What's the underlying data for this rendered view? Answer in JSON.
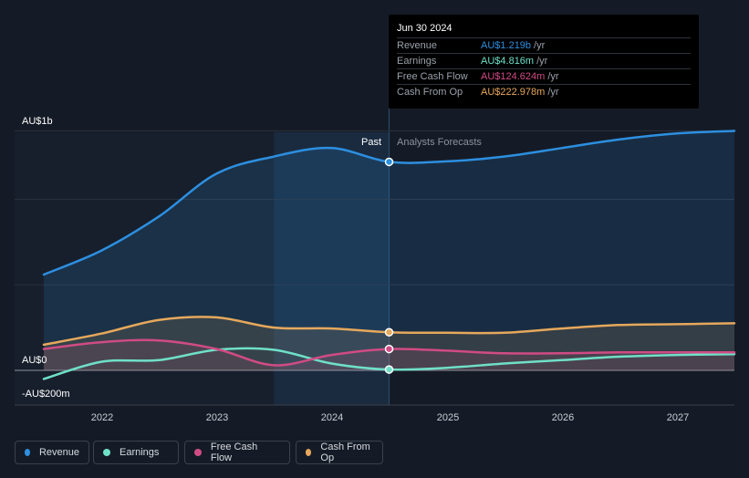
{
  "tooltip": {
    "date": "Jun 30 2024",
    "rows": [
      {
        "label": "Revenue",
        "value": "AU$1.219b",
        "unit": "/yr",
        "color": "#2d8fe0"
      },
      {
        "label": "Earnings",
        "value": "AU$4.816m",
        "unit": "/yr",
        "color": "#6fe0c8"
      },
      {
        "label": "Free Cash Flow",
        "value": "AU$124.624m",
        "unit": "/yr",
        "color": "#d04b84"
      },
      {
        "label": "Cash From Op",
        "value": "AU$222.978m",
        "unit": "/yr",
        "color": "#e6a85c"
      }
    ]
  },
  "axis": {
    "y_top_label": "AU$1b",
    "y_zero_label": "AU$0",
    "y_bottom_label": "-AU$200m",
    "x_ticks": [
      "2022",
      "2023",
      "2024",
      "2025",
      "2026",
      "2027"
    ]
  },
  "regions": {
    "past_label": "Past",
    "forecast_label": "Analysts Forecasts"
  },
  "legend": [
    {
      "label": "Revenue",
      "color": "#2d8fe0"
    },
    {
      "label": "Earnings",
      "color": "#6fe0c8"
    },
    {
      "label": "Free Cash Flow",
      "color": "#d04b84"
    },
    {
      "label": "Cash From Op",
      "color": "#e6a85c"
    }
  ],
  "chart_data": {
    "type": "line",
    "ylim": [
      -200,
      1400
    ],
    "xlim": [
      2021.5,
      2027.5
    ],
    "past_end": 2024.5,
    "highlight_start": 2023.5,
    "series": [
      {
        "name": "Revenue",
        "color": "#2d8fe0",
        "fill": true,
        "points": [
          [
            2021.5,
            560
          ],
          [
            2022.0,
            700
          ],
          [
            2022.5,
            900
          ],
          [
            2023.0,
            1150
          ],
          [
            2023.5,
            1250
          ],
          [
            2024.0,
            1300
          ],
          [
            2024.5,
            1219
          ],
          [
            2025.0,
            1222
          ],
          [
            2025.5,
            1250
          ],
          [
            2026.0,
            1300
          ],
          [
            2026.5,
            1350
          ],
          [
            2027.0,
            1385
          ],
          [
            2027.5,
            1400
          ]
        ]
      },
      {
        "name": "Earnings",
        "color": "#6fe0c8",
        "fill": false,
        "points": [
          [
            2021.5,
            -50
          ],
          [
            2022.0,
            50
          ],
          [
            2022.5,
            60
          ],
          [
            2023.0,
            120
          ],
          [
            2023.5,
            120
          ],
          [
            2024.0,
            40
          ],
          [
            2024.5,
            5
          ],
          [
            2025.0,
            15
          ],
          [
            2025.5,
            40
          ],
          [
            2026.0,
            60
          ],
          [
            2026.5,
            80
          ],
          [
            2027.0,
            90
          ],
          [
            2027.5,
            95
          ]
        ]
      },
      {
        "name": "Free Cash Flow",
        "color": "#d04b84",
        "fill": true,
        "points": [
          [
            2021.5,
            125
          ],
          [
            2022.0,
            165
          ],
          [
            2022.5,
            175
          ],
          [
            2023.0,
            125
          ],
          [
            2023.5,
            30
          ],
          [
            2024.0,
            90
          ],
          [
            2024.5,
            125
          ],
          [
            2025.0,
            115
          ],
          [
            2025.5,
            100
          ],
          [
            2026.0,
            100
          ],
          [
            2026.5,
            105
          ],
          [
            2027.0,
            105
          ],
          [
            2027.5,
            105
          ]
        ]
      },
      {
        "name": "Cash From Op",
        "color": "#e6a85c",
        "fill": true,
        "points": [
          [
            2021.5,
            150
          ],
          [
            2022.0,
            215
          ],
          [
            2022.5,
            295
          ],
          [
            2023.0,
            310
          ],
          [
            2023.5,
            250
          ],
          [
            2024.0,
            245
          ],
          [
            2024.5,
            223
          ],
          [
            2025.0,
            220
          ],
          [
            2025.5,
            220
          ],
          [
            2026.0,
            245
          ],
          [
            2026.5,
            265
          ],
          [
            2027.0,
            270
          ],
          [
            2027.5,
            275
          ]
        ]
      }
    ]
  }
}
